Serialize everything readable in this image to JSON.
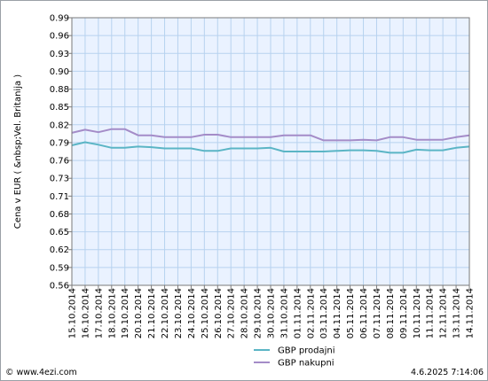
{
  "chart_data": {
    "type": "line",
    "ylabel": "Cena v EUR ( &nbsp;Vel. Britanija )",
    "ylim": [
      0.56,
      0.99
    ],
    "yticks": [
      "0.56",
      "0.59",
      "0.62",
      "0.65",
      "0.68",
      "0.71",
      "0.73",
      "0.76",
      "0.79",
      "0.82",
      "0.85",
      "0.88",
      "0.90",
      "0.93",
      "0.96",
      "0.99"
    ],
    "categories": [
      "15.10.2014",
      "16.10.2014",
      "17.10.2014",
      "18.10.2014",
      "19.10.2014",
      "20.10.2014",
      "21.10.2014",
      "22.10.2014",
      "23.10.2014",
      "24.10.2014",
      "25.10.2014",
      "26.10.2014",
      "27.10.2014",
      "28.10.2014",
      "29.10.2014",
      "30.10.2014",
      "31.10.2014",
      "01.11.2014",
      "02.11.2014",
      "03.11.2014",
      "04.11.2014",
      "05.11.2014",
      "06.11.2014",
      "07.11.2014",
      "08.11.2014",
      "09.11.2014",
      "10.11.2014",
      "11.11.2014",
      "12.11.2014",
      "13.11.2014",
      "14.11.2014"
    ],
    "grid": true,
    "legend_position": "bottom",
    "series": [
      {
        "name": "GBP prodajni",
        "color": "#5bb5c5",
        "values": [
          0.785,
          0.79,
          0.786,
          0.781,
          0.781,
          0.783,
          0.782,
          0.78,
          0.78,
          0.78,
          0.776,
          0.776,
          0.78,
          0.78,
          0.78,
          0.781,
          0.775,
          0.775,
          0.775,
          0.775,
          0.776,
          0.777,
          0.777,
          0.776,
          0.773,
          0.773,
          0.778,
          0.777,
          0.777,
          0.781,
          0.783
        ]
      },
      {
        "name": "GBP nakupni",
        "color": "#a48cc8",
        "values": [
          0.805,
          0.81,
          0.806,
          0.811,
          0.811,
          0.801,
          0.801,
          0.798,
          0.798,
          0.798,
          0.802,
          0.802,
          0.798,
          0.798,
          0.798,
          0.798,
          0.801,
          0.801,
          0.801,
          0.793,
          0.793,
          0.793,
          0.794,
          0.793,
          0.798,
          0.798,
          0.794,
          0.794,
          0.794,
          0.798,
          0.801
        ]
      }
    ]
  },
  "footer": {
    "source": "© www.4ezi.com",
    "timestamp": "4.6.2025 7:14:06"
  }
}
